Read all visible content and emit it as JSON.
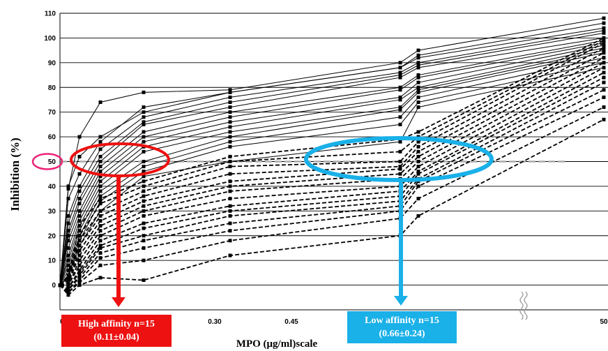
{
  "chart_data": {
    "type": "line",
    "title": "",
    "xlabel": "MPO (μg/ml)scale",
    "ylabel": "Inhibition (%)",
    "ylim": [
      0,
      110
    ],
    "y_ticks": [
      "0",
      "10",
      "20",
      "30",
      "40",
      "50",
      "60",
      "70",
      "80",
      "90",
      "100",
      "110"
    ],
    "x_ticks": [
      "0",
      "0.30",
      "0.45",
      "50"
    ],
    "x_axis_break": true,
    "x": [
      0,
      0.01,
      0.02,
      0.04,
      0.08,
      0.16,
      0.32,
      0.64,
      50
    ],
    "grid": "horizontal",
    "reference_line_y": 50,
    "groups": [
      {
        "name": "High affinity",
        "line_style": "solid",
        "count": 15,
        "series": [
          {
            "values": [
              0,
              40,
              52,
              60,
              70,
              78,
              88,
              93,
              106
            ]
          },
          {
            "values": [
              0,
              39,
              60,
              74,
              78,
              79,
              90,
              95,
              108
            ]
          },
          {
            "values": [
              0,
              35,
              45,
              58,
              72,
              78,
              88,
              92,
              104
            ]
          },
          {
            "values": [
              0,
              28,
              40,
              55,
              68,
              76,
              86,
              90,
              103
            ]
          },
          {
            "values": [
              0,
              25,
              38,
              52,
              66,
              74,
              85,
              89,
              102
            ]
          },
          {
            "values": [
              0,
              22,
              35,
              50,
              65,
              72,
              84,
              88,
              100
            ]
          },
          {
            "values": [
              0,
              20,
              33,
              48,
              62,
              70,
              80,
              85,
              99
            ]
          },
          {
            "values": [
              0,
              18,
              30,
              46,
              60,
              68,
              79,
              84,
              98
            ]
          },
          {
            "values": [
              0,
              15,
              28,
              44,
              58,
              66,
              76,
              82,
              97
            ]
          },
          {
            "values": [
              0,
              12,
              26,
              42,
              56,
              64,
              75,
              80,
              96
            ]
          },
          {
            "values": [
              0,
              10,
              24,
              40,
              54,
              62,
              72,
              79,
              95
            ]
          },
          {
            "values": [
              0,
              8,
              22,
              38,
              50,
              60,
              71,
              78,
              94
            ]
          },
          {
            "values": [
              0,
              6,
              20,
              36,
              48,
              58,
              68,
              76,
              92
            ]
          },
          {
            "values": [
              0,
              4,
              18,
              34,
              46,
              56,
              65,
              74,
              90
            ]
          },
          {
            "values": [
              0,
              3,
              16,
              30,
              44,
              50,
              58,
              72,
              88
            ]
          }
        ]
      },
      {
        "name": "Low affinity",
        "line_style": "dashed",
        "count": 15,
        "series": [
          {
            "values": [
              0,
              4,
              24,
              35,
              42,
              52,
              59,
              62,
              100
            ]
          },
          {
            "values": [
              0,
              3,
              20,
              33,
              40,
              50,
              54,
              60,
              99
            ]
          },
          {
            "values": [
              0,
              2,
              18,
              30,
              38,
              48,
              50,
              58,
              98
            ]
          },
          {
            "values": [
              0,
              2,
              16,
              28,
              36,
              45,
              48,
              56,
              96
            ]
          },
          {
            "values": [
              0,
              1,
              14,
              26,
              34,
              42,
              47,
              54,
              94
            ]
          },
          {
            "values": [
              0,
              1,
              12,
              24,
              32,
              40,
              45,
              52,
              92
            ]
          },
          {
            "values": [
              0,
              0,
              10,
              22,
              30,
              38,
              43,
              50,
              90
            ]
          },
          {
            "values": [
              0,
              0,
              8,
              20,
              28,
              35,
              40,
              48,
              88
            ]
          },
          {
            "values": [
              0,
              -1,
              6,
              18,
              25,
              32,
              38,
              46,
              86
            ]
          },
          {
            "values": [
              0,
              -1,
              5,
              16,
              23,
              30,
              36,
              45,
              84
            ]
          },
          {
            "values": [
              0,
              -2,
              4,
              15,
              20,
              28,
              34,
              43,
              82
            ]
          },
          {
            "values": [
              0,
              -2,
              3,
              13,
              18,
              25,
              32,
              42,
              79
            ]
          },
          {
            "values": [
              0,
              -3,
              2,
              11,
              15,
              22,
              30,
              40,
              76
            ]
          },
          {
            "values": [
              0,
              -3,
              1,
              8,
              10,
              18,
              27,
              35,
              72
            ]
          },
          {
            "values": [
              0,
              -4,
              0,
              3,
              2,
              12,
              20,
              28,
              67
            ]
          }
        ]
      }
    ],
    "annotations": {
      "high": {
        "line1": "High affinity n=15",
        "line2": "(0.11±0.04)",
        "color": "#ee1111"
      },
      "low": {
        "line1": "Low affinity n=15",
        "line2": "(0.66±0.24)",
        "color": "#1ab0e8"
      },
      "fifty_marker_color": "#ee2277"
    }
  }
}
